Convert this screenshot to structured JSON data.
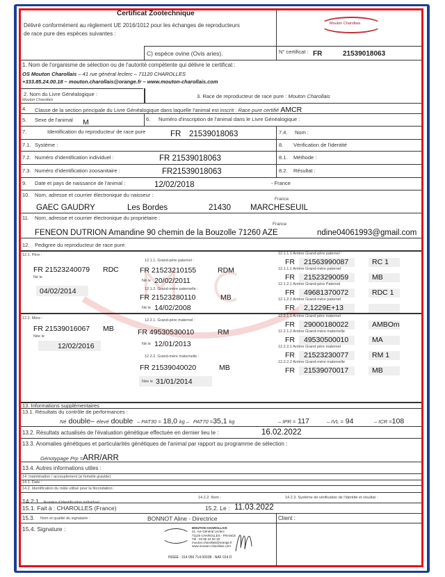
{
  "header": {
    "title": "Certificat Zootechnique",
    "subtitle_1": "Délivré conformément au règlement UE 2016/1012 pour les échanges de reproducteurs",
    "subtitle_2": "de race pure des espèces suivantes :",
    "species": "C) espèce ovine (Ovis aries).",
    "cert_label": "N° certificat :",
    "cert_prefix": "FR",
    "cert_number": "21539018063",
    "logo_text": "Mouton Charollais"
  },
  "s1": {
    "label": "1.  Nom de l'organisme de sélection ou de l'autorité compétente qui délivre le certificat :",
    "org": "OS Mouton Charollais",
    "address": " – 41 rue général leclerc – 71120 CHAROLLES",
    "contact": "+333.85.24.00.18 – mouton.charollais@orange.fr – www.mouton-charollais.com"
  },
  "s2": {
    "label": "2.    Nom du Livre Généalogique :",
    "value": "Mouton Charollais"
  },
  "s3": {
    "label": "3.     Race de reproducteur de race pure : ",
    "value": "Mouton Charollais"
  },
  "s4": {
    "num": "4.",
    "label": "Classe de la section principale du Livre Généalogique dans laquelle l'animal est inscrit : ",
    "italic": "Race pure certifié",
    "value": "AMCR"
  },
  "s5": {
    "num": "5.",
    "label": "Sexe de l'animal",
    "value": "M"
  },
  "s6": {
    "num": "6.",
    "label": "Numéro d'inscription de l'animal dans le Livre Généalogique :"
  },
  "s7": {
    "num": "7.",
    "label": "Identification du reproducteur de race pure",
    "prefix": "FR",
    "value": "21539018063"
  },
  "s7_4": {
    "num": "7.4.",
    "label": "Nom :"
  },
  "s7_1": {
    "num": "7.1.",
    "label": "Système :"
  },
  "s8": {
    "num": "8.",
    "label": "Vérification de l'identité"
  },
  "s7_2": {
    "num": "7.2.",
    "label": "Numéro d'identification individuel :",
    "value": "FR 21539018063"
  },
  "s8_1": {
    "num": "8.1.",
    "label": "Méthode :"
  },
  "s7_3": {
    "num": "7.3.",
    "label": "Numéro d'identification zoosanitaire :",
    "value": "FR21539018063"
  },
  "s8_2": {
    "num": "8.2.",
    "label": "Résultat :"
  },
  "s9": {
    "num": "9.",
    "label": "Date et pays de naissance de l'animal :",
    "date": "12/02/2018",
    "country": "- France"
  },
  "s10": {
    "num": "10.",
    "label": "Nom, adresse et courrier électronique du naisseur :",
    "country": "France",
    "name": "GAEC GAUDRY",
    "street": "Les Bordes",
    "zip": "21430",
    "city": "MARCHESEUIL"
  },
  "s11": {
    "num": "11.",
    "label": "Nom, adresse et courrier électronique du propriétaire :",
    "country": "France",
    "value": "FENEON DUTRION Amandine 90 chemin de la Bouzolle  71260 AZE",
    "email": "ndine04061993@gmail.com"
  },
  "s12": {
    "num": "12.",
    "label": "Pedigree du reproducteur de race pure"
  },
  "pedigree": {
    "born_label": "Né le",
    "born_label_f": "Née le",
    "sire": {
      "label": "12.1.  Père :",
      "id": "FR 21523240079",
      "code": "RDC",
      "born": "04/02/2014"
    },
    "pgs": {
      "label": "12.1.1.  Grand-père paternel :",
      "id": "FR  21523210155",
      "code": "RDM",
      "born": "20/02/2011"
    },
    "pgd": {
      "label": "12.1.2.  Grand-mère paternelle :",
      "id": "FR  21523280110",
      "code": "MB",
      "born": "14/02/2008"
    },
    "dam": {
      "label": "12.2.  Mère :",
      "id": "FR  21539016067",
      "code": "MB",
      "born": "12/02/2016"
    },
    "mgs": {
      "label": "12.2.1.  Grand-père maternel :",
      "id": "FR  49530530010",
      "code": "RM",
      "born": "12/01/2013"
    },
    "mgd": {
      "label": "12.2.2.  Grand-mère maternelle :",
      "id": "FR  21539040020",
      "code": "MB",
      "born": "31/01/2014"
    },
    "great": [
      {
        "label": "12.1.1.1  Arrière Grand-père paternel :",
        "fr": "FR",
        "id": "21563990087",
        "code": "RC 1"
      },
      {
        "label": "12.1.1.1  Arrière Grand-mère paternel",
        "fr": "FR",
        "id": "21523290059",
        "code": "MB"
      },
      {
        "label": "12.1.2.1 Arrière Grand-père Paternel",
        "fr": "FR",
        "id": "49681370072",
        "code": "RDC 1"
      },
      {
        "label": "12.1.2.2 Arrière Grand-mère paternel",
        "fr": "FR",
        "id": "2,1229E+13",
        "code": ""
      },
      {
        "label": "12.2.1.1  Arrière Grand père maternel",
        "fr": "FR",
        "id": "29000180022",
        "code": "AMBOm"
      },
      {
        "label": "12.2.1.2  Arrière Grand-mère maternelle",
        "fr": "FR",
        "id": "49530500010",
        "code": "MA"
      },
      {
        "label": "12.2.2.1  Arrière Grand père maternel",
        "fr": "FR",
        "id": "21523230077",
        "code": "RM 1"
      },
      {
        "label": "12.2.2.2 Arrière Grand-mère maternelle",
        "fr": "FR",
        "id": "21539070017",
        "code": "MB"
      }
    ],
    "watermark": "MOUTON CHAROLLAIS",
    "watermark_sub": "ORGANISME DE SÉLECTION"
  },
  "s13": {
    "label": "13.     Informations supplémentaires"
  },
  "s13_1": {
    "label": "13.1.   Résultats du contrôle de performances :",
    "ne": "Né",
    "ne_v": "double–",
    "eleve": "élevé",
    "eleve_v": "double",
    "pat30": "– PAT30 =",
    "pat30_v": "18,0",
    "kg1": "kg –",
    "pat70": "PAT70 =",
    "pat70_v": "35,1",
    "kg2": "kg",
    "ipr": "– IPR =",
    "ipr_v": "117",
    "ivl": "– IVL =",
    "ivl_v": "94",
    "icr": "– ICR =",
    "icr_v": "108"
  },
  "s13_2": {
    "label": "13.2.  Résultats actualisés de l'évaluation génétique effectuée en dernier lieu le :",
    "value": "16.02.2022"
  },
  "s13_3": {
    "label": "13.3.  Anomalies génétiques et particularités génétiques de l'animal par rapport au programme de sélection :",
    "geno": "Génotypage Prp =",
    "value": "ARR/ARR"
  },
  "s13_4": {
    "label": "13.4.  Autres informations utiles :"
  },
  "s14": {
    "label": "14.     Insémination / accouplement (si femelle gravide)"
  },
  "s14_1": {
    "label": "14.1.  Date :"
  },
  "s14_2": {
    "label": "14.2.  Identification du mâle utilisé pour la fécondation :"
  },
  "s14_2_1": {
    "num": "14.2.1.",
    "label": "Numéro d'identification individuel :"
  },
  "s14_2_2": {
    "label": "14.2.2. Nom :"
  },
  "s14_2_3": {
    "label": "14.2.3. Système de vérification de l'identité et résultat :"
  },
  "s15_1": {
    "label": "15.1.   Fait à : CHAROLLES (France)"
  },
  "s15_2": {
    "label": "15.2.   Le :",
    "value": "11.03.2022"
  },
  "s15_3": {
    "label": "15.3.",
    "sublabel": "Nom et qualité du signataire :",
    "value": "BONNOT Aline - Directrice"
  },
  "client": {
    "label": "Client :"
  },
  "s15_4": {
    "label": "15.4.   Signature :"
  },
  "stamp": {
    "line1": "MOUTON CHAROLLAIS",
    "line2": "41, rue Général Leclerc",
    "line3": "71120 CHAROLLES - FRANCE",
    "line4": "Tél : 03 85 24 00 18",
    "line5": "mouton.charollais@orange.fr",
    "line6": "www.mouton-charollais.com",
    "line7": "INSEE : 314 056 714 00038 - NAF 014 D"
  },
  "colors": {
    "frame_blue": "#1d3f8f",
    "frame_red": "#e3121a"
  }
}
